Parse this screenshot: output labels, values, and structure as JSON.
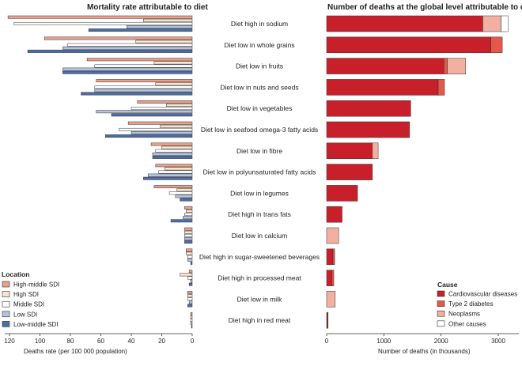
{
  "chart_data": [
    {
      "type": "bar",
      "orientation": "horizontal",
      "x_direction": "reversed",
      "title": "Mortality rate attributable to diet",
      "xlabel": "Deaths rate (per 100 000 population)",
      "xlim": [
        0,
        125
      ],
      "xticks": [
        "120",
        "100",
        "80",
        "60",
        "40",
        "20",
        "0"
      ],
      "xtick_values": [
        120,
        100,
        80,
        60,
        40,
        20,
        0
      ],
      "legend": {
        "title": "Location",
        "position": "bottom-left"
      },
      "categories": [
        "Diet high in sodium",
        "Diet low in whole grains",
        "Diet low in fruits",
        "Diet low in nuts and seeds",
        "Diet low in vegetables",
        "Diet low in seafood omega-3 fatty acids",
        "Diet low in fibre",
        "Diet low in polyunsaturated fatty acids",
        "Diet low in legumes",
        "Diet high in trans fats",
        "Diet low in calcium",
        "Diet high in sugar-sweetened beverages",
        "Diet high in processed meat",
        "Diet low in milk",
        "Diet high in red meat"
      ],
      "series": [
        {
          "name": "High-middle SDI",
          "color": "#e9a08c",
          "values": [
            121,
            97,
            69,
            63,
            36,
            42,
            27,
            24,
            25,
            5,
            5,
            4,
            2,
            3,
            1
          ]
        },
        {
          "name": "High SDI",
          "color": "#fbe3cc",
          "values": [
            32,
            37,
            25,
            24,
            17,
            21,
            20,
            18,
            10,
            4,
            5,
            4,
            8,
            3,
            1
          ]
        },
        {
          "name": "Middle SDI",
          "color": "#ffffff",
          "values": [
            117,
            82,
            64,
            64,
            40,
            48,
            24,
            22,
            15,
            5,
            5,
            3,
            3,
            3,
            1
          ]
        },
        {
          "name": "Low SDI",
          "color": "#b3c3e0",
          "values": [
            43,
            85,
            85,
            64,
            63,
            40,
            26,
            29,
            11,
            6,
            5,
            3,
            1,
            2,
            1
          ]
        },
        {
          "name": "Low-middle SDI",
          "color": "#4c6da8",
          "values": [
            68,
            108,
            85,
            73,
            53,
            57,
            26,
            32,
            8,
            14,
            5,
            1,
            2,
            3,
            0.5
          ]
        }
      ]
    },
    {
      "type": "bar",
      "orientation": "horizontal",
      "stacked": true,
      "title": "Number of deaths at the global level attributable to diet",
      "xlabel": "Number of deaths (in thousands)",
      "xlim": [
        0,
        3350
      ],
      "xticks": [
        "0",
        "1000",
        "2000",
        "3000"
      ],
      "xtick_values": [
        0,
        1000,
        2000,
        3000
      ],
      "legend": {
        "title": "Cause",
        "position": "bottom-right"
      },
      "categories": [
        "Diet high in sodium",
        "Diet low in whole grains",
        "Diet low in fruits",
        "Diet low in nuts and seeds",
        "Diet low in vegetables",
        "Diet low in seafood omega-3 fatty acids",
        "Diet low in fibre",
        "Diet low in polyunsaturated fatty acids",
        "Diet low in legumes",
        "Diet high in trans fats",
        "Diet low in calcium",
        "Diet high in sugar-sweetened beverages",
        "Diet high in processed meat",
        "Diet low in milk",
        "Diet high in red meat"
      ],
      "series": [
        {
          "name": "Cardiovascular diseases",
          "color": "#c8202a",
          "values": [
            2730,
            2870,
            2050,
            1950,
            1470,
            1450,
            800,
            800,
            540,
            270,
            0,
            110,
            95,
            0,
            20
          ]
        },
        {
          "name": "Type 2 diabetes",
          "color": "#e4584b",
          "values": [
            0,
            200,
            60,
            110,
            0,
            0,
            0,
            0,
            0,
            0,
            0,
            30,
            30,
            0,
            5
          ]
        },
        {
          "name": "Neoplasms",
          "color": "#f2b0a2",
          "values": [
            320,
            0,
            320,
            0,
            0,
            0,
            100,
            0,
            0,
            0,
            210,
            0,
            0,
            150,
            0
          ]
        },
        {
          "name": "Other causes",
          "color": "#ffffff",
          "values": [
            120,
            0,
            0,
            0,
            0,
            0,
            0,
            0,
            0,
            0,
            0,
            0,
            0,
            0,
            0
          ]
        }
      ]
    }
  ]
}
